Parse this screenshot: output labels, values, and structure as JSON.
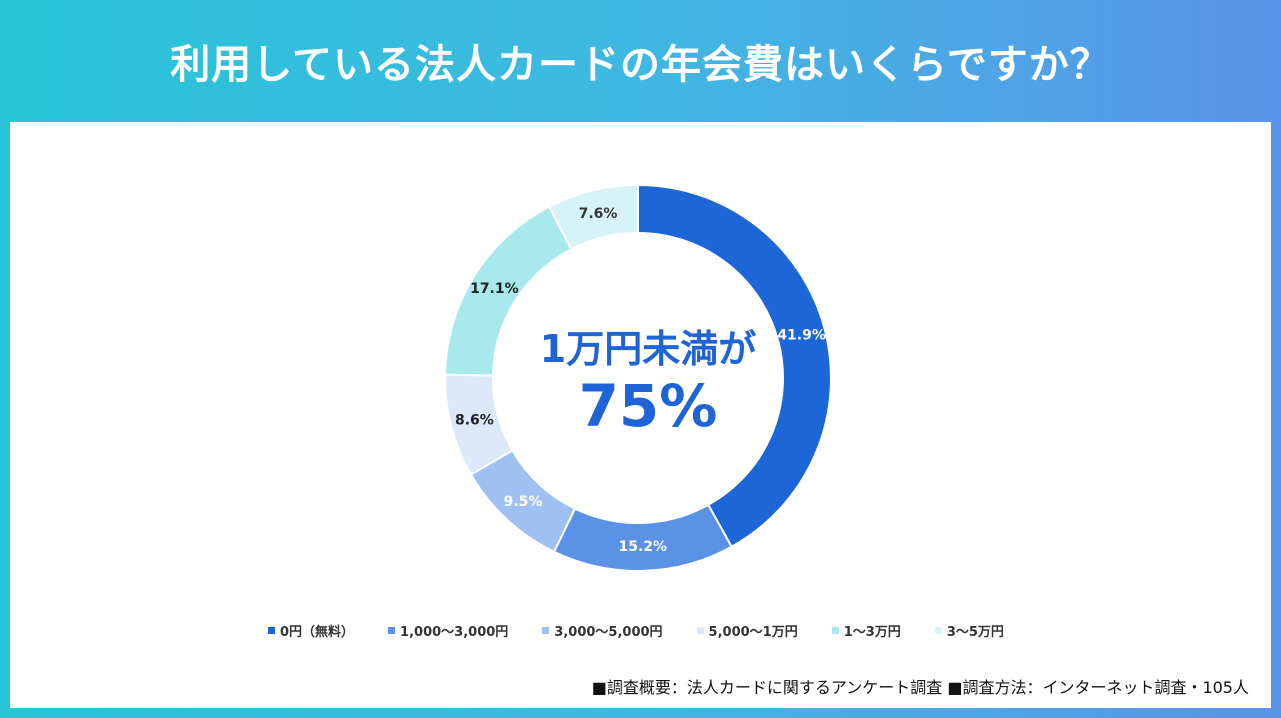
{
  "header": {
    "title": "利用している法人カードの年会費はいくらですか？"
  },
  "center": {
    "line1": "1万円未満が",
    "line2": "75%"
  },
  "footnote": "■調査概要：法人カードに関するアンケート調査 ■調査方法：インターネット調査・105人",
  "chart_data": {
    "type": "pie",
    "title": "利用している法人カードの年会費はいくらですか？",
    "series": [
      {
        "name": "0円（無料）",
        "value": 41.9,
        "label": "41.9%",
        "color": "#1c66d8",
        "label_color": "#ffffff"
      },
      {
        "name": "1,000〜3,000円",
        "value": 15.2,
        "label": "15.2%",
        "color": "#5a93e6",
        "label_color": "#ffffff"
      },
      {
        "name": "3,000〜5,000円",
        "value": 9.5,
        "label": "9.5%",
        "color": "#9fc1f1",
        "label_color": "#ffffff"
      },
      {
        "name": "5,000〜1万円",
        "value": 8.6,
        "label": "8.6%",
        "color": "#dde8fa",
        "label_color": "#222222"
      },
      {
        "name": "1〜3万円",
        "value": 17.1,
        "label": "17.1%",
        "color": "#a8e9ee",
        "label_color": "#222222"
      },
      {
        "name": "3〜5万円",
        "value": 7.6,
        "label": "7.6%",
        "color": "#d6f4f7",
        "label_color": "#333333"
      }
    ],
    "legend_position": "bottom"
  }
}
